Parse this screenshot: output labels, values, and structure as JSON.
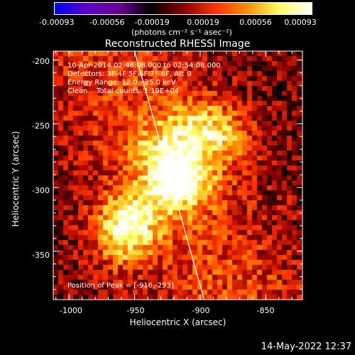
{
  "colorbar": {
    "tick_labels": [
      "-0.00093",
      "-0.00056",
      "-0.00019",
      "0.00019",
      "0.00056",
      "0.00093"
    ],
    "unit_label": "(photons cm⁻² s⁻¹ asec⁻²)",
    "range": [
      -0.00093,
      0.00093
    ],
    "colors": [
      "#0000ff",
      "#5a00c8",
      "#6a009a",
      "#000000",
      "#8b0000",
      "#ff3000",
      "#ff9000",
      "#ffff60",
      "#ffffff"
    ]
  },
  "plot": {
    "title": "Reconstructed RHESSI Image",
    "info": {
      "time": "10-Apr-2014 02:48:08.000 to 02:54:08.000",
      "detectors": "Detectors: 3F 4F 5F 6F 7F 8F, Att 0",
      "energy": "Energy Range: 12.0 - 25.0 keV",
      "clean": "Clean    Total counts: 1.19E+04"
    },
    "peak_label": "Position of Peak = [-916,-293]",
    "xlabel": "Heliocentric X (arcsec)",
    "ylabel": "Heliocentric Y (arcsec)",
    "xticks": [
      "-1000",
      "-950",
      "-900",
      "-850"
    ],
    "yticks": [
      "-200",
      "-250",
      "-300",
      "-350"
    ],
    "xlim": [
      -1012,
      -822
    ],
    "ylim": [
      -388,
      -193
    ]
  },
  "footer": {
    "timestamp": "14-May-2022 12:37"
  },
  "chart_data": {
    "type": "heatmap",
    "title": "Reconstructed RHESSI Image",
    "xlabel": "Heliocentric X (arcsec)",
    "ylabel": "Heliocentric Y (arcsec)",
    "xlim": [
      -1012,
      -822
    ],
    "ylim": [
      -388,
      -193
    ],
    "xticks": [
      -1000,
      -950,
      -900,
      -850
    ],
    "yticks": [
      -200,
      -250,
      -300,
      -350
    ],
    "value_range": [
      -0.00093,
      0.00093
    ],
    "peak": {
      "x": -916,
      "y": -293,
      "value": 0.00093
    },
    "sources": [
      {
        "x": -916,
        "y": -293,
        "value": 0.00093
      },
      {
        "x": -953,
        "y": -325,
        "value": 0.0007
      },
      {
        "x": -905,
        "y": -255,
        "value": 0.00045
      },
      {
        "x": -880,
        "y": -258,
        "value": 0.0004
      },
      {
        "x": -962,
        "y": -345,
        "value": 0.00035
      },
      {
        "x": -935,
        "y": -270,
        "value": 0.0003
      }
    ],
    "limb_line": {
      "x": [
        -950,
        -897
      ],
      "y": [
        -193,
        -388
      ]
    },
    "grid": false
  }
}
